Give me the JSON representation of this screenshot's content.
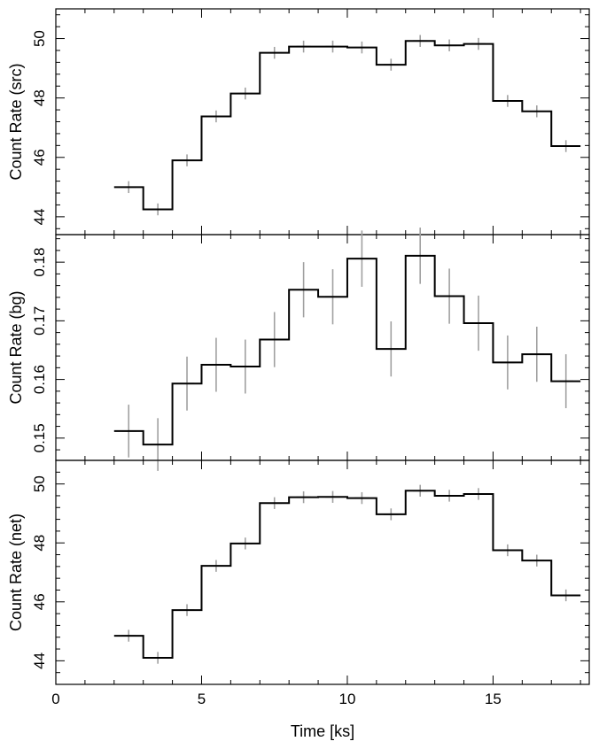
{
  "chart_data": [
    {
      "type": "line",
      "panel": "top",
      "ylabel": "Count Rate (src)",
      "xlim": [
        0,
        18.3
      ],
      "ylim": [
        43.4,
        51.0
      ],
      "yticks_major": [
        44,
        46,
        48,
        50
      ],
      "yticks_major_labels": [
        "44",
        "46",
        "48",
        "50"
      ],
      "x_bin_edges": [
        2,
        3,
        4,
        5,
        6,
        7,
        8,
        9,
        10,
        11,
        12,
        13,
        14,
        15,
        16,
        17,
        18
      ],
      "x_centers": [
        2.5,
        3.5,
        4.5,
        5.5,
        6.5,
        7.5,
        8.5,
        9.5,
        10.5,
        11.5,
        12.5,
        13.5,
        14.5,
        15.5,
        16.5,
        17.5
      ],
      "values": [
        45.0,
        44.25,
        45.9,
        47.38,
        48.15,
        49.52,
        49.73,
        49.73,
        49.7,
        49.12,
        49.92,
        49.77,
        49.82,
        47.9,
        47.55,
        46.38
      ],
      "errors": [
        0.2,
        0.2,
        0.2,
        0.2,
        0.2,
        0.2,
        0.2,
        0.2,
        0.2,
        0.2,
        0.2,
        0.2,
        0.2,
        0.2,
        0.2,
        0.2
      ],
      "line_color": "#000000",
      "error_color": "#a0a0a0"
    },
    {
      "type": "line",
      "panel": "middle",
      "ylabel": "Count Rate (bg)",
      "xlim": [
        0,
        18.3
      ],
      "ylim": [
        0.1462,
        0.1847
      ],
      "yticks_major": [
        0.15,
        0.16,
        0.17,
        0.18
      ],
      "yticks_major_labels": [
        "0.15",
        "0.16",
        "0.17",
        "0.18"
      ],
      "x_bin_edges": [
        2,
        3,
        4,
        5,
        6,
        7,
        8,
        9,
        10,
        11,
        12,
        13,
        14,
        15,
        16,
        17,
        18
      ],
      "x_centers": [
        2.5,
        3.5,
        4.5,
        5.5,
        6.5,
        7.5,
        8.5,
        9.5,
        10.5,
        11.5,
        12.5,
        13.5,
        14.5,
        15.5,
        16.5,
        17.5
      ],
      "values": [
        0.1512,
        0.1489,
        0.1593,
        0.1625,
        0.1622,
        0.1668,
        0.1753,
        0.1741,
        0.1806,
        0.1652,
        0.1811,
        0.1742,
        0.1696,
        0.1629,
        0.1643,
        0.1597
      ],
      "errors": [
        0.0045,
        0.0045,
        0.0046,
        0.0046,
        0.0046,
        0.0047,
        0.0047,
        0.0047,
        0.0048,
        0.0047,
        0.0048,
        0.0047,
        0.0047,
        0.0046,
        0.0047,
        0.0046
      ],
      "line_color": "#000000",
      "error_color": "#a0a0a0"
    },
    {
      "type": "line",
      "panel": "bottom",
      "ylabel": "Count Rate (net)",
      "xlabel": "Time [ks]",
      "xlim": [
        0,
        18.3
      ],
      "ylim": [
        43.2,
        50.8
      ],
      "xticks_major": [
        0,
        5,
        10,
        15
      ],
      "xticks_major_labels": [
        "0",
        "5",
        "10",
        "15"
      ],
      "yticks_major": [
        44,
        46,
        48,
        50
      ],
      "yticks_major_labels": [
        "44",
        "46",
        "48",
        "50"
      ],
      "x_bin_edges": [
        2,
        3,
        4,
        5,
        6,
        7,
        8,
        9,
        10,
        11,
        12,
        13,
        14,
        15,
        16,
        17,
        18
      ],
      "x_centers": [
        2.5,
        3.5,
        4.5,
        5.5,
        6.5,
        7.5,
        8.5,
        9.5,
        10.5,
        11.5,
        12.5,
        13.5,
        14.5,
        15.5,
        16.5,
        17.5
      ],
      "values": [
        44.85,
        44.1,
        45.72,
        47.22,
        47.98,
        49.35,
        49.55,
        49.56,
        49.52,
        48.97,
        49.77,
        49.6,
        49.66,
        47.75,
        47.4,
        46.22
      ],
      "errors": [
        0.2,
        0.2,
        0.2,
        0.2,
        0.2,
        0.2,
        0.2,
        0.2,
        0.2,
        0.2,
        0.2,
        0.2,
        0.2,
        0.2,
        0.2,
        0.2
      ],
      "line_color": "#000000",
      "error_color": "#a0a0a0"
    }
  ]
}
